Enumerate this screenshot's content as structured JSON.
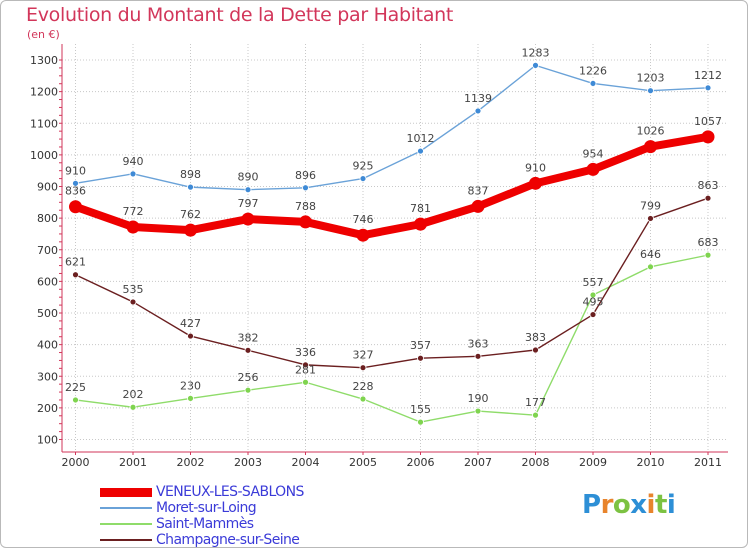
{
  "chart_data": {
    "type": "line",
    "title": "Evolution du Montant de la Dette par Habitant",
    "unit_label": "(en €)",
    "x": [
      "2000",
      "2001",
      "2002",
      "2003",
      "2004",
      "2005",
      "2006",
      "2007",
      "2008",
      "2009",
      "2010",
      "2011"
    ],
    "yticks": [
      100,
      200,
      300,
      400,
      500,
      600,
      700,
      800,
      900,
      1000,
      1100,
      1200,
      1300
    ],
    "ylim": [
      100,
      1300
    ],
    "grid": true,
    "legend_position": "bottom-left",
    "series": [
      {
        "name": "VENEUX-LES-SABLONS",
        "color": "#ee0000",
        "marker_color": "#ee0000",
        "label_color": "#444444",
        "bold": true,
        "values": [
          836,
          772,
          762,
          797,
          788,
          746,
          781,
          837,
          910,
          954,
          1026,
          1057
        ]
      },
      {
        "name": "Moret-sur-Loing",
        "color": "#6aa2d8",
        "marker_color": "#3e8ad6",
        "label_color": "#444444",
        "bold": false,
        "values": [
          910,
          940,
          898,
          890,
          896,
          925,
          1012,
          1139,
          1283,
          1226,
          1203,
          1212
        ]
      },
      {
        "name": "Saint-Mammès",
        "color": "#8fdc6a",
        "marker_color": "#7fd44f",
        "label_color": "#444444",
        "bold": false,
        "values": [
          225,
          202,
          230,
          256,
          281,
          228,
          155,
          190,
          177,
          557,
          646,
          683
        ]
      },
      {
        "name": "Champagne-sur-Seine",
        "color": "#6b1f20",
        "marker_color": "#6b1f20",
        "label_color": "#444444",
        "bold": false,
        "values": [
          621,
          535,
          427,
          382,
          336,
          327,
          357,
          363,
          383,
          495,
          799,
          863
        ]
      }
    ]
  },
  "logo": {
    "letters": [
      "P",
      "r",
      "o",
      "x",
      "i",
      "t",
      "i"
    ],
    "colors": [
      "#2d8fd6",
      "#e8842c",
      "#7cc242",
      "#2d8fd6",
      "#e8842c",
      "#7cc242",
      "#2d8fd6"
    ]
  }
}
